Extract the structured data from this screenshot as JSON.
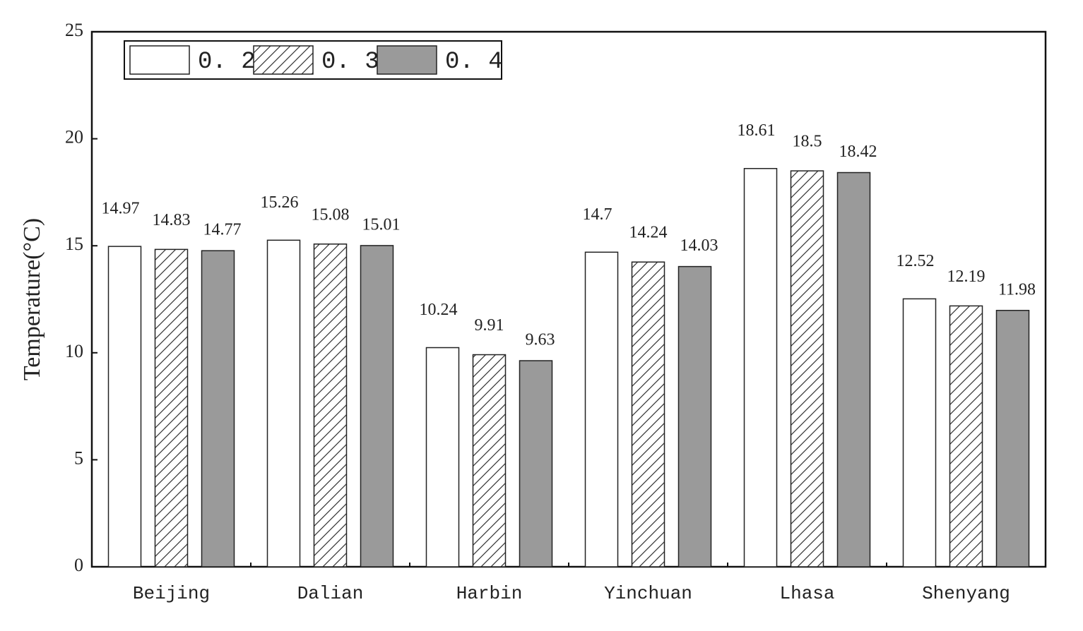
{
  "chart_data": {
    "type": "bar",
    "y_label": "Temperature(°C)",
    "categories": [
      "Beijing",
      "Dalian",
      "Harbin",
      "Yinchuan",
      "Lhasa",
      "Shenyang"
    ],
    "series": [
      {
        "name": "0. 2",
        "color": "#ffffff",
        "pattern": "solid",
        "values": [
          14.97,
          15.26,
          10.24,
          14.7,
          18.61,
          12.52
        ]
      },
      {
        "name": "0. 3",
        "color": "#ffffff",
        "pattern": "hatch",
        "values": [
          14.83,
          15.08,
          9.91,
          14.24,
          18.5,
          12.19
        ]
      },
      {
        "name": "0. 4",
        "color": "#9a9a9a",
        "pattern": "solid",
        "values": [
          14.77,
          15.01,
          9.63,
          14.03,
          18.42,
          11.98
        ]
      }
    ],
    "ylim": [
      0,
      25
    ],
    "yticks": [
      0,
      5,
      10,
      15,
      20,
      25
    ],
    "legend": "upper-left"
  }
}
